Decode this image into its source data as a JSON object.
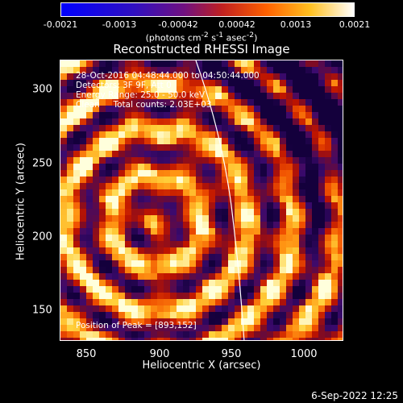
{
  "colorbar": {
    "ticks": [
      "-0.0021",
      "-0.0013",
      "-0.00042",
      "0.00042",
      "0.0013",
      "0.0021"
    ],
    "units_text": "(photons cm",
    "units_sup1": "-2",
    "units_mid": " s",
    "units_sup2": "-1",
    "units_end": " asec",
    "units_sup3": "-2",
    "units_close": ")"
  },
  "title": "Reconstructed RHESSI Image",
  "annotations": {
    "time": "28-Oct-2016 04:48:44.000 to 04:50:44.000",
    "detectors": "Detectors: 3F 9F, Att 0",
    "energy": "Energy Range: 25.0 - 50.0 keV",
    "clean": "Clean     Total counts: 2.03E+03",
    "peak": "Position of Peak = [893,152]"
  },
  "axes": {
    "xlabel": "Heliocentric X (arcsec)",
    "ylabel": "Heliocentric Y (arcsec)",
    "xticks": [
      "850",
      "900",
      "950",
      "1000"
    ],
    "yticks": [
      "300",
      "250",
      "200",
      "150"
    ]
  },
  "timestamp": "6-Sep-2022 12:25"
}
